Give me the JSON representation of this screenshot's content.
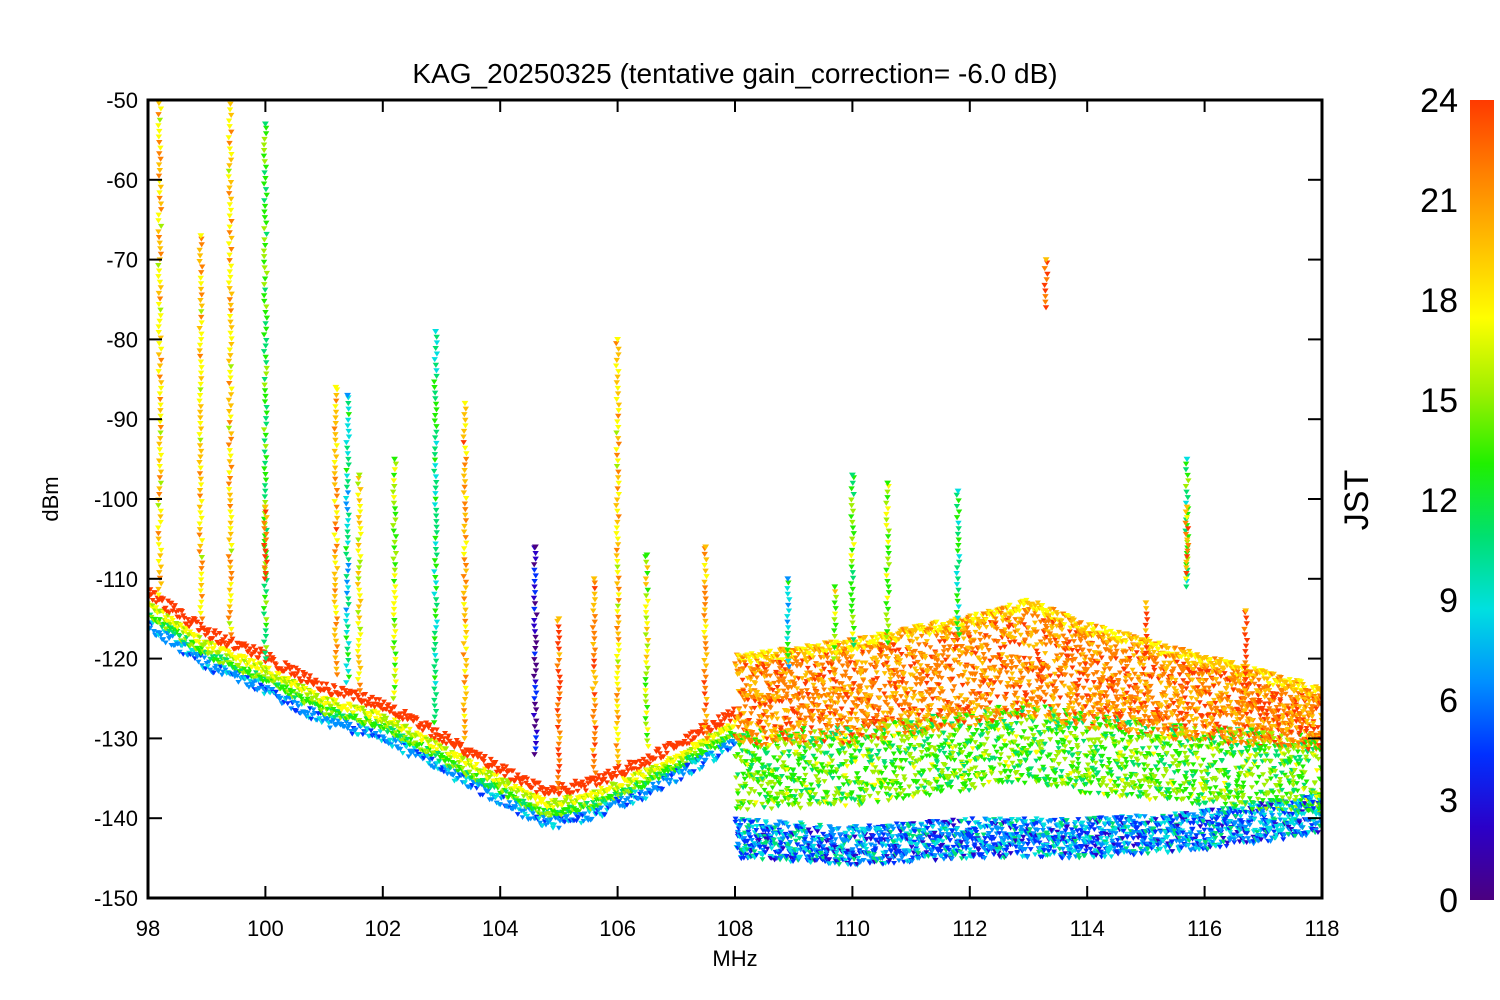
{
  "chart_data": {
    "type": "scatter",
    "title": "KAG_20250325 (tentative gain_correction= -6.0 dB)",
    "xlabel": "MHz",
    "ylabel": "dBm",
    "xlim": [
      98,
      118
    ],
    "ylim": [
      -150,
      -50
    ],
    "x_ticks": [
      "98",
      "100",
      "102",
      "104",
      "106",
      "108",
      "110",
      "112",
      "114",
      "116",
      "118"
    ],
    "y_ticks": [
      "-50",
      "-60",
      "-70",
      "-80",
      "-90",
      "-100",
      "-110",
      "-120",
      "-130",
      "-140",
      "-150"
    ],
    "grid": false,
    "marker": "inverted-triangle",
    "colorbar": {
      "label": "JST",
      "range": [
        0,
        24
      ],
      "ticks": [
        "0",
        "3",
        "6",
        "9",
        "12",
        "15",
        "18",
        "21",
        "24"
      ],
      "colormap": [
        "#4b0080",
        "#2b00c8",
        "#0030ff",
        "#0090ff",
        "#00e0e0",
        "#00e070",
        "#20f000",
        "#a0f000",
        "#ffff00",
        "#ffc000",
        "#ff8000",
        "#ff3a00"
      ]
    },
    "noise_floor": [
      {
        "x": 98.0,
        "y": -113
      },
      {
        "x": 99.0,
        "y": -118
      },
      {
        "x": 100.0,
        "y": -121
      },
      {
        "x": 101.0,
        "y": -125
      },
      {
        "x": 102.0,
        "y": -127
      },
      {
        "x": 103.0,
        "y": -131
      },
      {
        "x": 104.0,
        "y": -135
      },
      {
        "x": 104.8,
        "y": -138
      },
      {
        "x": 105.5,
        "y": -137
      },
      {
        "x": 106.5,
        "y": -134
      },
      {
        "x": 107.5,
        "y": -130
      },
      {
        "x": 108.0,
        "y": -128
      }
    ],
    "wideband_band": [
      {
        "x": 108.0,
        "top": -121,
        "bottom": -145
      },
      {
        "x": 110.0,
        "top": -119,
        "bottom": -146
      },
      {
        "x": 112.0,
        "top": -116,
        "bottom": -145
      },
      {
        "x": 113.0,
        "top": -114,
        "bottom": -145
      },
      {
        "x": 114.0,
        "top": -117,
        "bottom": -145
      },
      {
        "x": 116.0,
        "top": -121,
        "bottom": -144
      },
      {
        "x": 118.0,
        "top": -125,
        "bottom": -142
      }
    ],
    "signals": [
      {
        "x": 98.2,
        "top": -50,
        "bottom": -112,
        "hour": 19
      },
      {
        "x": 98.9,
        "top": -67,
        "bottom": -115,
        "hour": 19
      },
      {
        "x": 99.4,
        "top": -50,
        "bottom": -117,
        "hour": 19
      },
      {
        "x": 100.0,
        "top": -53,
        "bottom": -120,
        "hour": 13
      },
      {
        "x": 100.0,
        "top": -101,
        "bottom": -110,
        "hour": 23
      },
      {
        "x": 101.2,
        "top": -86,
        "bottom": -122,
        "hour": 20
      },
      {
        "x": 101.4,
        "top": -87,
        "bottom": -123,
        "hour": 10
      },
      {
        "x": 101.6,
        "top": -97,
        "bottom": -124,
        "hour": 18
      },
      {
        "x": 102.2,
        "top": -95,
        "bottom": -125,
        "hour": 15
      },
      {
        "x": 102.9,
        "top": -79,
        "bottom": -128,
        "hour": 11
      },
      {
        "x": 103.4,
        "top": -88,
        "bottom": -130,
        "hour": 20
      },
      {
        "x": 104.6,
        "top": -106,
        "bottom": -132,
        "hour": 2
      },
      {
        "x": 105.0,
        "top": -115,
        "bottom": -137,
        "hour": 23
      },
      {
        "x": 105.6,
        "top": -110,
        "bottom": -135,
        "hour": 22
      },
      {
        "x": 106.0,
        "top": -80,
        "bottom": -133,
        "hour": 19
      },
      {
        "x": 106.5,
        "top": -107,
        "bottom": -131,
        "hour": 16
      },
      {
        "x": 107.5,
        "top": -106,
        "bottom": -130,
        "hour": 21
      },
      {
        "x": 108.9,
        "top": -110,
        "bottom": -121,
        "hour": 10
      },
      {
        "x": 109.7,
        "top": -111,
        "bottom": -120,
        "hour": 16
      },
      {
        "x": 110.0,
        "top": -97,
        "bottom": -119,
        "hour": 14
      },
      {
        "x": 110.6,
        "top": -98,
        "bottom": -118,
        "hour": 15
      },
      {
        "x": 111.8,
        "top": -99,
        "bottom": -117,
        "hour": 11
      },
      {
        "x": 113.3,
        "top": -70,
        "bottom": -76,
        "hour": 23
      },
      {
        "x": 115.0,
        "top": -113,
        "bottom": -120,
        "hour": 23
      },
      {
        "x": 115.7,
        "top": -95,
        "bottom": -111,
        "hour": 12
      },
      {
        "x": 115.7,
        "top": -101,
        "bottom": -110,
        "hour": 21
      },
      {
        "x": 116.7,
        "top": -114,
        "bottom": -124,
        "hour": 23
      }
    ]
  }
}
